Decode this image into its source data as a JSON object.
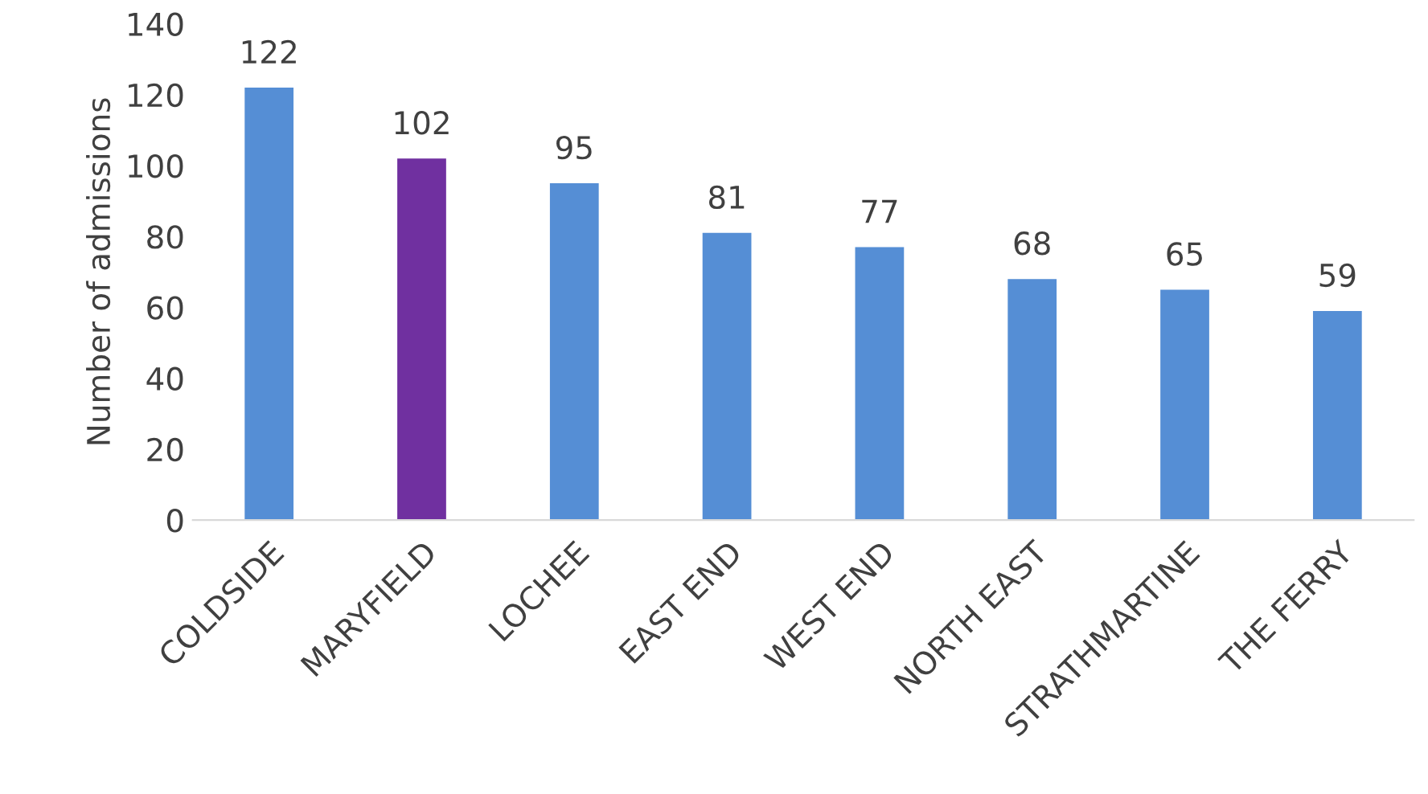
{
  "chart_data": {
    "type": "bar",
    "ylabel": "Number of admissions",
    "categories": [
      "COLDSIDE",
      "MARYFIELD",
      "LOCHEE",
      "EAST END",
      "WEST END",
      "NORTH EAST",
      "STRATHMARTINE",
      "THE FERRY"
    ],
    "values": [
      122,
      102,
      95,
      81,
      77,
      68,
      65,
      59
    ],
    "colors": [
      "#558ed5",
      "#7030a0",
      "#558ed5",
      "#558ed5",
      "#558ed5",
      "#558ed5",
      "#558ed5",
      "#558ed5"
    ],
    "ylim": [
      0,
      140
    ],
    "yticks": [
      0,
      20,
      40,
      60,
      80,
      100,
      120,
      140
    ],
    "data_labels": true,
    "grid": false,
    "legend": false
  }
}
